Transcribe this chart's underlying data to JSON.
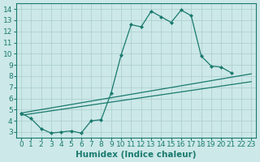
{
  "xlabel": "Humidex (Indice chaleur)",
  "bg_color": "#cce8e8",
  "grid_color": "#aacccc",
  "line_color": "#1a7a6e",
  "xlim": [
    -0.5,
    23.5
  ],
  "ylim": [
    2.5,
    14.5
  ],
  "xticks": [
    0,
    1,
    2,
    3,
    4,
    5,
    6,
    7,
    8,
    9,
    10,
    11,
    12,
    13,
    14,
    15,
    16,
    17,
    18,
    19,
    20,
    21,
    22,
    23
  ],
  "yticks": [
    3,
    4,
    5,
    6,
    7,
    8,
    9,
    10,
    11,
    12,
    13,
    14
  ],
  "line1_x": [
    0,
    1,
    2,
    3,
    4,
    5,
    6,
    7,
    8,
    9,
    10,
    11,
    12,
    13,
    14,
    15,
    16,
    17,
    18,
    19,
    20,
    21
  ],
  "line1_y": [
    4.7,
    4.2,
    3.3,
    2.9,
    3.0,
    3.1,
    2.9,
    4.0,
    4.1,
    6.5,
    9.9,
    12.6,
    12.4,
    13.8,
    13.3,
    12.8,
    13.9,
    13.4,
    9.8,
    8.9,
    8.8,
    8.3
  ],
  "line2_x": [
    0,
    23
  ],
  "line2_y": [
    4.7,
    8.2
  ],
  "line3_x": [
    0,
    23
  ],
  "line3_y": [
    4.5,
    7.5
  ],
  "fontsize_tick": 6.5,
  "fontsize_label": 7.5
}
